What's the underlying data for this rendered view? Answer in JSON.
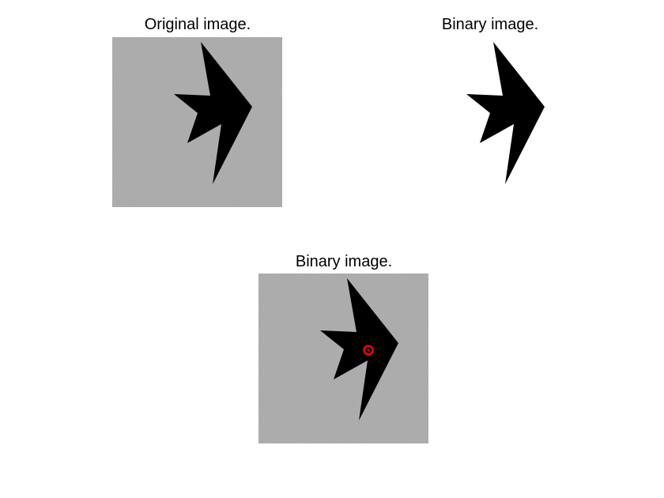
{
  "figure": {
    "panels": [
      {
        "title": "Original image.",
        "background": "#ababab",
        "shape_color": "#000000"
      },
      {
        "title": "Binary image.",
        "background": "#ffffff",
        "shape_color": "#000000"
      },
      {
        "title": "Binary image.",
        "background": "#ababab",
        "shape_color": "#000000",
        "marker_color": "#ff0000"
      }
    ]
  }
}
